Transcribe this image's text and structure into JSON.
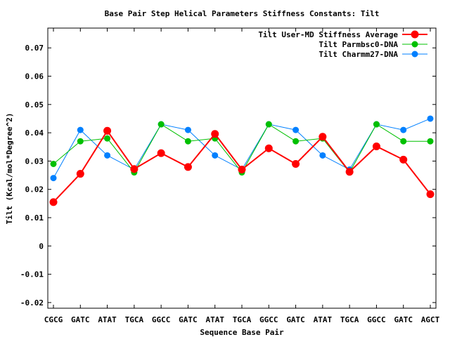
{
  "chart_data": {
    "type": "line",
    "title": "Base Pair Step Helical Parameters Stiffness Constants: Tilt",
    "xlabel": "Sequence Base Pair",
    "ylabel": "Tilt (Kcal/mol*Degree^2)",
    "ylim": [
      -0.022,
      0.077
    ],
    "yticks": [
      -0.02,
      -0.01,
      0,
      0.01,
      0.02,
      0.03,
      0.04,
      0.05,
      0.06,
      0.07
    ],
    "ytick_labels": [
      "-0.02",
      "-0.01",
      "0",
      "0.01",
      "0.02",
      "0.03",
      "0.04",
      "0.05",
      "0.06",
      "0.07"
    ],
    "grid": false,
    "legend_position": "top-right",
    "categories": [
      "CGCG",
      "GATC",
      "ATAT",
      "TGCA",
      "GGCC",
      "GATC",
      "ATAT",
      "TGCA",
      "GGCC",
      "GATC",
      "ATAT",
      "TGCA",
      "GGCC",
      "GATC",
      "AGCT"
    ],
    "series": [
      {
        "name": "Tilt User-MD Stiffness Average",
        "color": "#ff0000",
        "line_style": "thick",
        "values": [
          0.0155,
          0.0255,
          0.0407,
          0.0272,
          0.0328,
          0.0279,
          0.0396,
          0.027,
          0.0345,
          0.029,
          0.0386,
          0.0262,
          0.0352,
          0.0305,
          0.0183
        ]
      },
      {
        "name": "Tilt Parmbsc0-DNA",
        "color": "#00c000",
        "line_style": "thin",
        "values": [
          0.029,
          0.037,
          0.038,
          0.026,
          0.043,
          0.037,
          0.038,
          0.026,
          0.043,
          0.037,
          0.038,
          0.026,
          0.043,
          0.037,
          0.037
        ]
      },
      {
        "name": "Tilt Charmm27-DNA",
        "color": "#0080ff",
        "line_style": "thin",
        "values": [
          0.024,
          0.041,
          0.032,
          0.027,
          0.043,
          0.041,
          0.032,
          0.027,
          0.043,
          0.041,
          0.032,
          0.027,
          0.043,
          0.041,
          0.045
        ]
      }
    ]
  }
}
